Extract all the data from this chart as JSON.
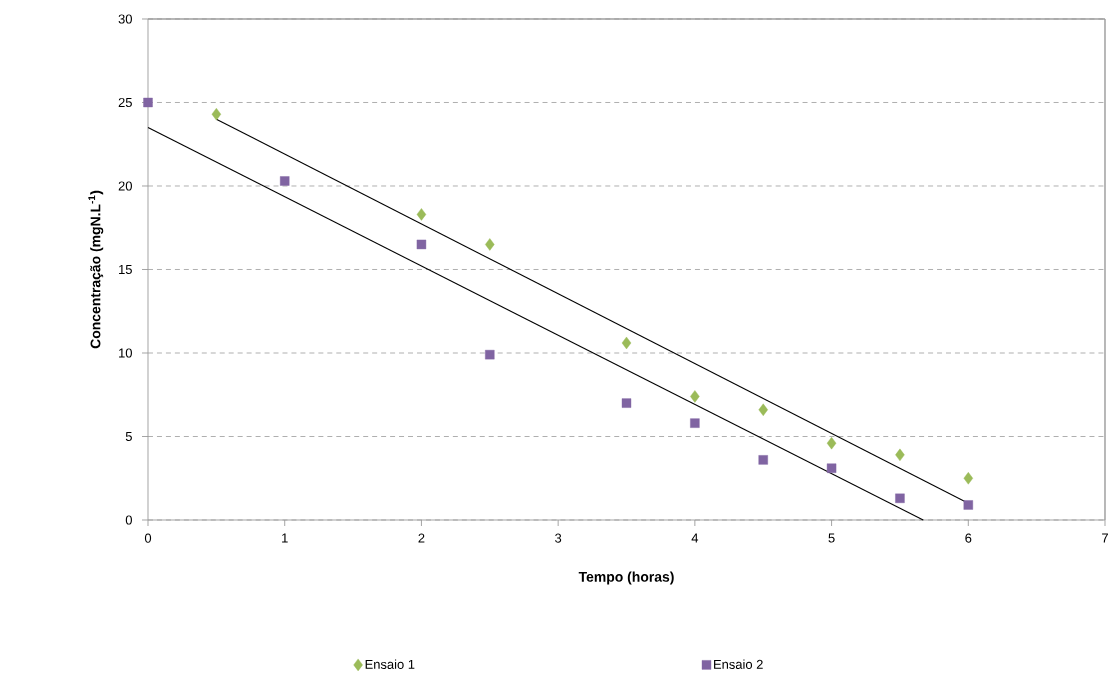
{
  "chart_data": {
    "type": "scatter",
    "xlabel": "Tempo (horas)",
    "ylabel": "Concentração (mgN.L$^{-1}$)",
    "xlim": [
      0,
      7
    ],
    "ylim": [
      0,
      30
    ],
    "xticks": [
      0,
      1,
      2,
      3,
      4,
      5,
      6,
      7
    ],
    "yticks": [
      0,
      5,
      10,
      15,
      20,
      25,
      30
    ],
    "grid": "y",
    "legend": "bottom",
    "series": [
      {
        "name": "Ensaio 1",
        "color": "#9bbb59",
        "marker": "diamond",
        "x": [
          0.5,
          2,
          2.5,
          3.5,
          4,
          4.5,
          5,
          5.5,
          6
        ],
        "values": [
          24.3,
          18.3,
          16.5,
          10.6,
          7.4,
          6.6,
          4.6,
          3.9,
          2.5
        ]
      },
      {
        "name": "Ensaio 2",
        "color": "#8064a2",
        "marker": "square",
        "x": [
          0,
          1,
          2,
          2.5,
          3.5,
          4,
          4.5,
          5,
          5.5,
          6
        ],
        "values": [
          25,
          20.3,
          16.5,
          9.9,
          7.0,
          5.8,
          3.6,
          3.1,
          1.3,
          0.9
        ]
      },
      {
        "type": "line",
        "color": "#000000",
        "marker": "none",
        "x": [
          0.5,
          6
        ],
        "values": [
          24.0,
          1.0
        ]
      },
      {
        "type": "line",
        "color": "#000000",
        "marker": "none",
        "x": [
          0,
          5.67
        ],
        "values": [
          23.5,
          0
        ]
      }
    ]
  }
}
